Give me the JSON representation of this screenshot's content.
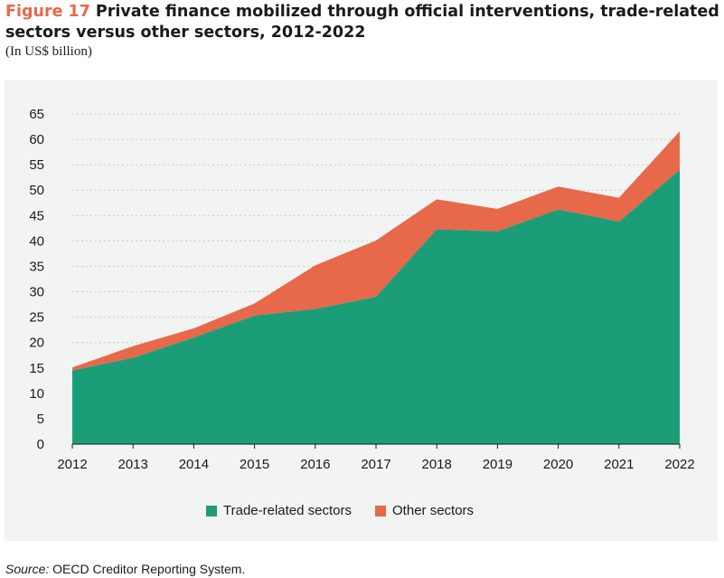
{
  "header": {
    "figure_label": "Figure 17",
    "title_line1": "Private finance mobilized through official interventions, trade-related",
    "title_line2": "sectors versus other sectors, 2012-2022",
    "subtitle": "(In US$ billion)"
  },
  "source": {
    "label": "Source:",
    "text": "OECD Creditor Reporting System."
  },
  "colors": {
    "trade": "#1b9e77",
    "other": "#e8684a",
    "panel": "#f2f4f3",
    "grid": "#c9c9c9"
  },
  "chart_data": {
    "type": "area",
    "stacked": true,
    "x": [
      "2012",
      "2013",
      "2014",
      "2015",
      "2016",
      "2017",
      "2018",
      "2019",
      "2020",
      "2021",
      "2022"
    ],
    "series": [
      {
        "name": "Trade-related sectors",
        "values": [
          14.5,
          17.0,
          21.0,
          25.3,
          26.6,
          29.0,
          42.3,
          41.9,
          46.2,
          43.8,
          54.0
        ]
      },
      {
        "name": "Other sectors",
        "values": [
          0.6,
          2.3,
          1.8,
          2.4,
          8.6,
          11.1,
          5.9,
          4.4,
          4.5,
          4.7,
          7.6
        ]
      }
    ],
    "yticks": [
      "0",
      "5",
      "10",
      "15",
      "20",
      "25",
      "30",
      "35",
      "40",
      "45",
      "50",
      "55",
      "60",
      "65"
    ],
    "ylim": [
      0,
      65
    ],
    "grid": true,
    "legend_position": "bottom-center"
  }
}
